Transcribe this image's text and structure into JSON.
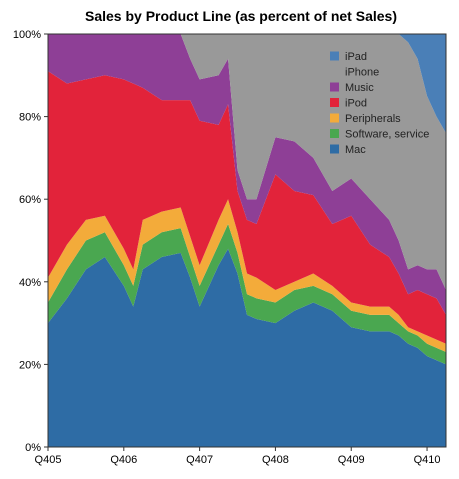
{
  "chart_data": {
    "type": "area",
    "title": "Sales by Product Line (as percent of net Sales)",
    "xlabel": "",
    "ylabel": "",
    "stacked": true,
    "ylim": [
      0,
      100
    ],
    "y_ticks": [
      0,
      20,
      40,
      60,
      80,
      100
    ],
    "y_tick_labels": [
      "0%",
      "20%",
      "40%",
      "60%",
      "80%",
      "100%"
    ],
    "x_tick_labels": [
      "Q405",
      "Q406",
      "Q407",
      "Q408",
      "Q409",
      "Q410"
    ],
    "x_tick_positions": [
      0,
      4,
      8,
      12,
      16,
      20
    ],
    "x": [
      0,
      1,
      2,
      3,
      4,
      4.5,
      5,
      6,
      7,
      7.5,
      8,
      9,
      9.5,
      10,
      10.5,
      11,
      12,
      13,
      14,
      15,
      16,
      17,
      18,
      18.5,
      19,
      19.5,
      20,
      20.5,
      21
    ],
    "grid": false,
    "legend_position": "top-right",
    "series": [
      {
        "name": "Mac",
        "color": "#2e6ca5",
        "values": [
          30,
          36,
          43,
          46,
          39,
          34,
          43,
          46,
          47,
          41,
          34,
          44,
          48,
          42,
          32,
          31,
          30,
          33,
          35,
          33,
          29,
          28,
          28,
          27,
          25,
          24,
          22,
          21,
          20
        ]
      },
      {
        "name": "Software, service",
        "color": "#4aa750",
        "values": [
          5,
          7,
          7,
          6,
          5,
          5,
          6,
          6,
          6,
          5,
          5,
          5,
          6,
          5,
          5,
          5,
          5,
          5,
          4,
          4,
          4,
          4,
          4,
          3,
          3,
          3,
          3,
          3,
          3
        ]
      },
      {
        "name": "Peripherals",
        "color": "#f3ab3a",
        "values": [
          6,
          6,
          5,
          4,
          4,
          4,
          6,
          5,
          5,
          5,
          5,
          6,
          6,
          5,
          5,
          5,
          3,
          2,
          3,
          2,
          2,
          2,
          2,
          2,
          1,
          1,
          2,
          2,
          2
        ]
      },
      {
        "name": "iPod",
        "color": "#e2233a",
        "values": [
          50,
          39,
          34,
          34,
          41,
          45,
          32,
          27,
          26,
          33,
          35,
          23,
          23,
          10,
          13,
          13,
          28,
          22,
          19,
          15,
          21,
          15,
          12,
          10,
          8,
          10,
          10,
          10,
          7
        ]
      },
      {
        "name": "Music",
        "color": "#8e3f96",
        "values": [
          9,
          12,
          11,
          10,
          11,
          12,
          13,
          16,
          16,
          10,
          10,
          12,
          11,
          5,
          5,
          6,
          9,
          12,
          9,
          8,
          9,
          11,
          9,
          8,
          6,
          6,
          6,
          7,
          6
        ]
      },
      {
        "name": "iPhone",
        "color": "#999999",
        "values": [
          0,
          0,
          0,
          0,
          0,
          0,
          0,
          0,
          0,
          6,
          11,
          10,
          6,
          33,
          40,
          40,
          25,
          26,
          30,
          38,
          35,
          40,
          45,
          50,
          55,
          50,
          42,
          37,
          38
        ]
      },
      {
        "name": "iPad",
        "color": "#4a7fb7",
        "values": [
          0,
          0,
          0,
          0,
          0,
          0,
          0,
          0,
          0,
          0,
          0,
          0,
          0,
          0,
          0,
          0,
          0,
          0,
          0,
          0,
          0,
          0,
          0,
          0,
          2,
          6,
          15,
          20,
          24
        ]
      }
    ],
    "legend_order": [
      "iPad",
      "iPhone",
      "Music",
      "iPod",
      "Peripherals",
      "Software, service",
      "Mac"
    ]
  }
}
